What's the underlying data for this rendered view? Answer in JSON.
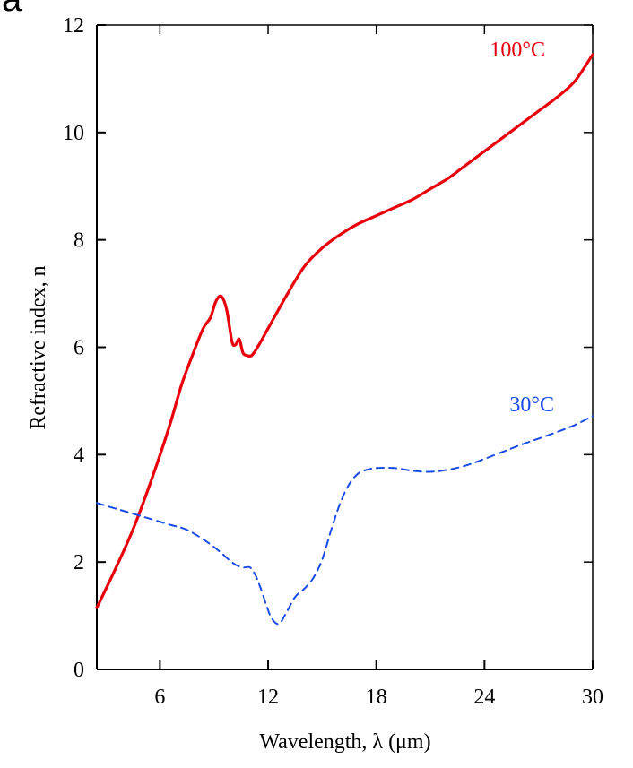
{
  "panel_letter": "a",
  "chart_data": {
    "type": "line",
    "xlabel": "Wavelength, λ (μm)",
    "ylabel": "Refractive index, n",
    "xlim": [
      2.5,
      30
    ],
    "ylim": [
      0,
      12
    ],
    "xticks": [
      6,
      12,
      18,
      24,
      30
    ],
    "yticks": [
      0,
      2,
      4,
      6,
      8,
      10,
      12
    ],
    "grid": false,
    "series": [
      {
        "name": "100°C",
        "color": "#e8000b",
        "style": "solid",
        "x": [
          2.5,
          3.5,
          4.5,
          5.5,
          6.5,
          7.2,
          7.8,
          8.4,
          8.8,
          9.1,
          9.4,
          9.7,
          10.0,
          10.2,
          10.4,
          10.6,
          10.8,
          11.1,
          11.5,
          12.0,
          13.0,
          14.0,
          15.0,
          16.0,
          17.0,
          18.0,
          19.0,
          20.0,
          21.0,
          22.0,
          23.0,
          24.0,
          25.0,
          26.0,
          27.0,
          28.0,
          29.0,
          30.0
        ],
        "y": [
          1.15,
          1.85,
          2.6,
          3.5,
          4.5,
          5.3,
          5.85,
          6.35,
          6.55,
          6.85,
          6.95,
          6.7,
          6.1,
          6.05,
          6.15,
          5.9,
          5.85,
          5.85,
          6.05,
          6.35,
          6.95,
          7.5,
          7.85,
          8.1,
          8.3,
          8.45,
          8.6,
          8.75,
          8.95,
          9.15,
          9.4,
          9.65,
          9.9,
          10.15,
          10.4,
          10.65,
          10.95,
          11.45
        ]
      },
      {
        "name": "30°C",
        "color": "#1a4be6",
        "style": "dashed",
        "x": [
          2.5,
          3.5,
          4.5,
          5.5,
          6.5,
          7.5,
          8.5,
          9.3,
          9.8,
          10.2,
          10.6,
          11.0,
          11.3,
          11.6,
          11.9,
          12.2,
          12.6,
          13.0,
          13.5,
          14.0,
          14.5,
          15.0,
          15.5,
          16.0,
          16.5,
          17.0,
          17.5,
          18.0,
          19.0,
          20.0,
          21.0,
          22.0,
          23.0,
          24.0,
          25.0,
          26.0,
          27.0,
          28.0,
          29.0,
          30.0
        ],
        "y": [
          3.1,
          3.0,
          2.9,
          2.8,
          2.7,
          2.6,
          2.4,
          2.2,
          2.05,
          1.95,
          1.9,
          1.9,
          1.75,
          1.5,
          1.2,
          0.95,
          0.85,
          1.05,
          1.35,
          1.5,
          1.7,
          2.05,
          2.6,
          3.1,
          3.45,
          3.65,
          3.72,
          3.75,
          3.75,
          3.7,
          3.68,
          3.72,
          3.8,
          3.92,
          4.05,
          4.18,
          4.3,
          4.42,
          4.55,
          4.72
        ]
      }
    ]
  }
}
